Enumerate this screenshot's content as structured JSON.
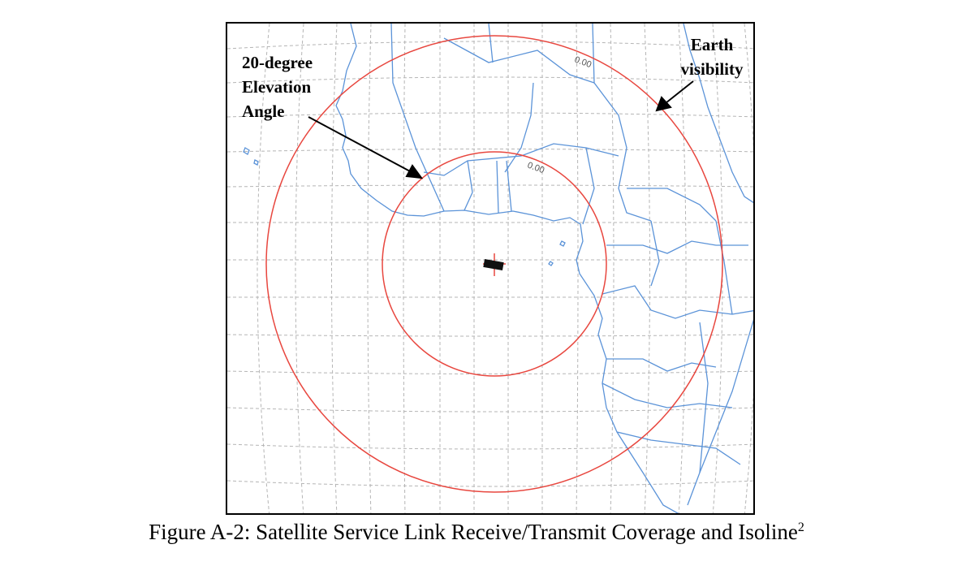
{
  "map": {
    "isoline_label_outer": "0.00",
    "isoline_label_inner": "0.00",
    "colors": {
      "coverage_circle": "#e8473f",
      "graticule": "#b5b5b5",
      "coastline": "#5b93d8",
      "arrow": "#000000"
    }
  },
  "annotations": {
    "elevation_label_lines": [
      "20-degree",
      "Elevation",
      "Angle"
    ],
    "earth_label_lines": [
      "Earth",
      "visibility"
    ]
  },
  "caption": {
    "text": "Figure A-2: Satellite Service Link Receive/Transmit Coverage and Isoline",
    "footnote_mark": "2"
  }
}
